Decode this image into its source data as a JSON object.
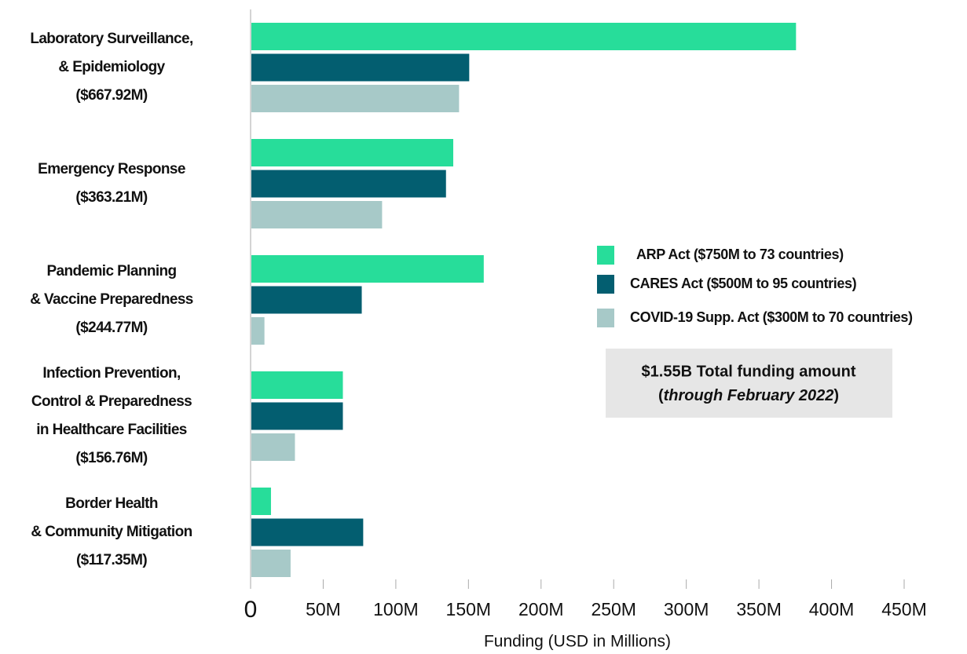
{
  "chart_data": {
    "type": "hbar",
    "categories": [
      [
        "Laboratory Surveillance,",
        "& Epidemiology",
        "($667.92M)"
      ],
      [
        "Emergency Response",
        "($363.21M)"
      ],
      [
        "Pandemic Planning",
        "& Vaccine Preparedness",
        "($244.77M)"
      ],
      [
        "Infection Prevention,",
        "Control & Preparedness",
        "in Healthcare Facilities",
        "($156.76M)"
      ],
      [
        "Border  Health",
        "& Community Mitigation",
        "($117.35M)"
      ]
    ],
    "series": [
      {
        "name": "ARP Act ($750M to 73 countries)",
        "color": "#27dd9a",
        "values": [
          375,
          139,
          160,
          63,
          13.5
        ]
      },
      {
        "name": "CARES Act ($500M to 95 countries)",
        "color": "#035e70",
        "values": [
          150,
          134,
          76,
          63,
          77
        ]
      },
      {
        "name": "COVID-19 Supp. Act ($300M to 70 countries)",
        "color": "#a7c9c8",
        "values": [
          143,
          90,
          9,
          30,
          27
        ]
      }
    ],
    "xlim": [
      0,
      450
    ],
    "xticks": [
      0,
      {
        "value": 50,
        "label": "50M"
      },
      {
        "value": 100,
        "label": "100M"
      },
      {
        "value": 150,
        "label": "150M"
      },
      {
        "value": 200,
        "label": "200M"
      },
      {
        "value": 250,
        "label": "250M"
      },
      {
        "value": 300,
        "label": "300M"
      },
      {
        "value": 350,
        "label": "350M"
      },
      {
        "value": 400,
        "label": "400M"
      },
      {
        "value": 450,
        "label": "450M"
      }
    ],
    "xlabel": "Funding (USD in Millions)",
    "annotation": [
      "$1.55B Total funding amount",
      "(",
      "through February 2022",
      ")"
    ],
    "grid": false
  }
}
